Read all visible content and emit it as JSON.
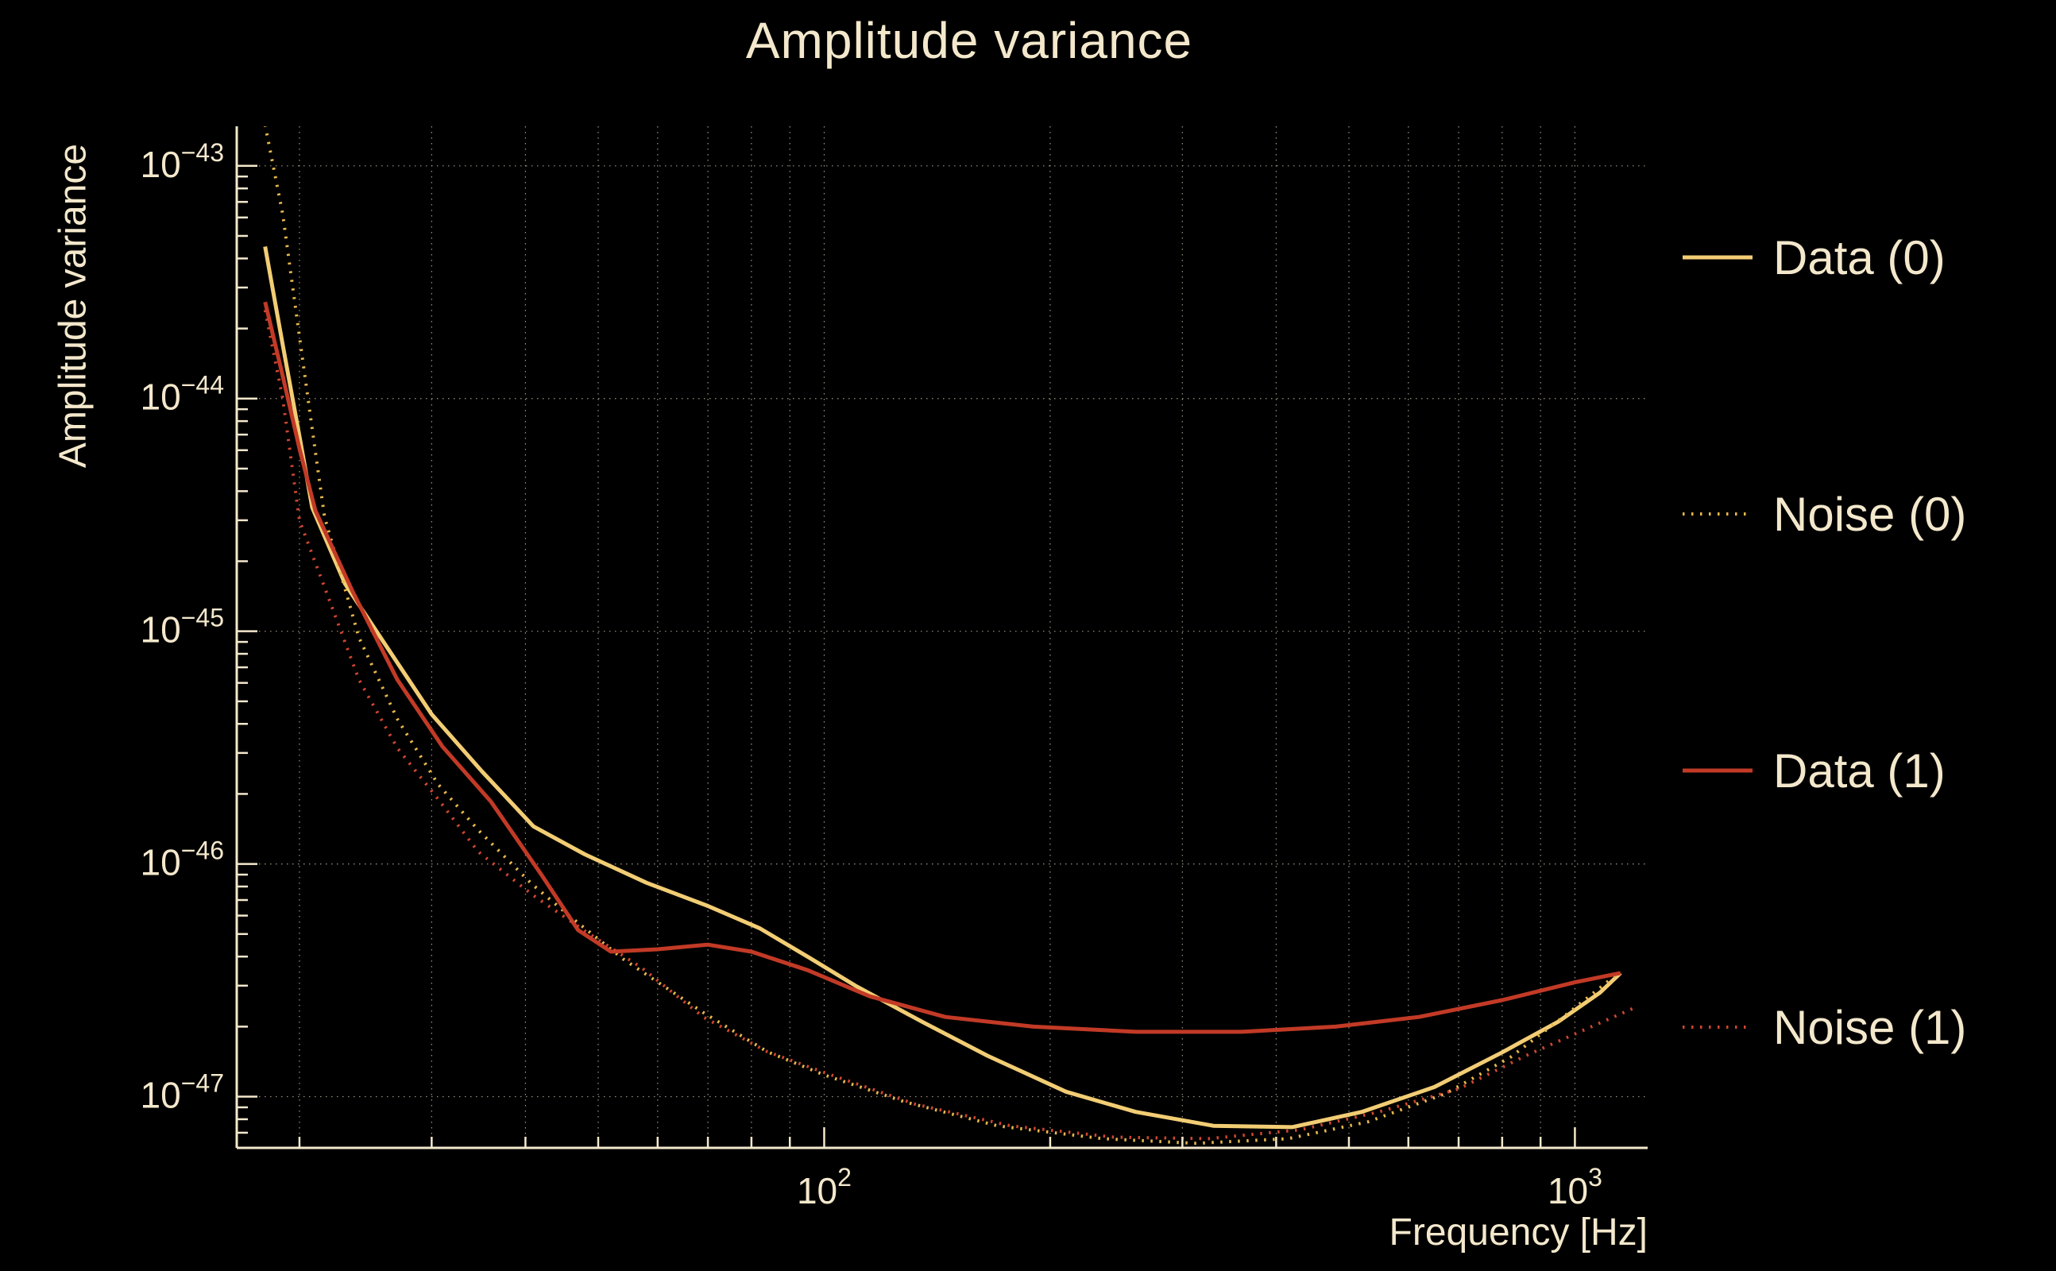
{
  "page": {
    "background": "#000000",
    "text_color": "#f4e8cc"
  },
  "chart_data": {
    "type": "line",
    "title": "Amplitude variance",
    "xlabel": "Frequency [Hz]",
    "ylabel": "Amplitude variance",
    "x_scale": "log",
    "y_scale": "log",
    "xlim": [
      16.5,
      1250
    ],
    "ylim_exp": [
      -47.22,
      -42.83
    ],
    "grid": true,
    "legend_position": "right-outside",
    "grid_color": "#f4e8cc",
    "axis_color": "#f4e8cc",
    "x_axis": {
      "major_ticks": [
        {
          "value": 100,
          "base": "10",
          "exp": "2"
        },
        {
          "value": 1000,
          "base": "10",
          "exp": "3"
        }
      ],
      "minor_ticks": [
        20,
        30,
        40,
        50,
        60,
        70,
        80,
        90,
        200,
        300,
        400,
        500,
        600,
        700,
        800,
        900
      ]
    },
    "y_axis": {
      "major_ticks": [
        {
          "exp_value": -43,
          "base": "10",
          "exp": "−43"
        },
        {
          "exp_value": -44,
          "base": "10",
          "exp": "−44"
        },
        {
          "exp_value": -45,
          "base": "10",
          "exp": "−45"
        },
        {
          "exp_value": -46,
          "base": "10",
          "exp": "−46"
        },
        {
          "exp_value": -47,
          "base": "10",
          "exp": "−47"
        }
      ]
    },
    "series": [
      {
        "name": "Data (0)",
        "color": "#f2cd74",
        "line_style": "solid",
        "points": [
          [
            18,
            4.5e-44
          ],
          [
            19,
            1.7e-44
          ],
          [
            20,
            6.9e-45
          ],
          [
            20.8,
            3.4e-45
          ],
          [
            23,
            1.6e-45
          ],
          [
            26,
            8.8e-46
          ],
          [
            30,
            4.4e-46
          ],
          [
            35,
            2.5e-46
          ],
          [
            41,
            1.45e-46
          ],
          [
            48,
            1.1e-46
          ],
          [
            58,
            8.3e-47
          ],
          [
            70,
            6.6e-47
          ],
          [
            82,
            5.3e-47
          ],
          [
            95,
            4e-47
          ],
          [
            110,
            3e-47
          ],
          [
            135,
            2.1e-47
          ],
          [
            165,
            1.5e-47
          ],
          [
            210,
            1.05e-47
          ],
          [
            260,
            8.6e-48
          ],
          [
            330,
            7.5e-48
          ],
          [
            420,
            7.4e-48
          ],
          [
            520,
            8.6e-48
          ],
          [
            650,
            1.1e-47
          ],
          [
            800,
            1.55e-47
          ],
          [
            950,
            2.1e-47
          ],
          [
            1080,
            2.8e-47
          ],
          [
            1150,
            3.4e-47
          ]
        ]
      },
      {
        "name": "Noise (0)",
        "color": "#e6b84c",
        "line_style": "dotted",
        "points": [
          [
            18,
            1.5e-43
          ],
          [
            19,
            6.2e-44
          ],
          [
            20,
            1.85e-44
          ],
          [
            21,
            5.9e-45
          ],
          [
            21.6,
            3.1e-45
          ],
          [
            24,
            9.4e-46
          ],
          [
            27,
            4.2e-46
          ],
          [
            30.6,
            2.2e-46
          ],
          [
            34.6,
            1.4e-46
          ],
          [
            40.8,
            8.2e-47
          ],
          [
            46,
            5.9e-47
          ],
          [
            54,
            3.9e-47
          ],
          [
            69,
            2.3e-47
          ],
          [
            84,
            1.56e-47
          ],
          [
            100,
            1.24e-47
          ],
          [
            128,
            9.5e-48
          ],
          [
            170,
            7.5e-48
          ],
          [
            235,
            6.6e-48
          ],
          [
            313,
            6.3e-48
          ],
          [
            415,
            6.6e-48
          ],
          [
            530,
            7.8e-48
          ],
          [
            672,
            1.03e-47
          ],
          [
            821,
            1.48e-47
          ],
          [
            965,
            2.2e-47
          ],
          [
            1130,
            3.3e-47
          ]
        ]
      },
      {
        "name": "Data (1)",
        "color": "#c23a26",
        "line_style": "solid",
        "points": [
          [
            18,
            2.6e-44
          ],
          [
            19,
            1.25e-44
          ],
          [
            20,
            6.1e-45
          ],
          [
            21,
            3.3e-45
          ],
          [
            23.5,
            1.5e-45
          ],
          [
            27,
            6.2e-46
          ],
          [
            31,
            3.2e-46
          ],
          [
            36,
            1.85e-46
          ],
          [
            42,
            9e-47
          ],
          [
            47,
            5.2e-47
          ],
          [
            52,
            4.2e-47
          ],
          [
            60,
            4.3e-47
          ],
          [
            70,
            4.5e-47
          ],
          [
            80,
            4.2e-47
          ],
          [
            95,
            3.5e-47
          ],
          [
            115,
            2.7e-47
          ],
          [
            145,
            2.2e-47
          ],
          [
            190,
            2e-47
          ],
          [
            260,
            1.9e-47
          ],
          [
            360,
            1.9e-47
          ],
          [
            480,
            2e-47
          ],
          [
            620,
            2.2e-47
          ],
          [
            800,
            2.6e-47
          ],
          [
            1000,
            3.1e-47
          ],
          [
            1150,
            3.4e-47
          ]
        ]
      },
      {
        "name": "Noise (1)",
        "color": "#cf4630",
        "line_style": "dotted",
        "points": [
          [
            18,
            2.4e-44
          ],
          [
            19,
            1e-44
          ],
          [
            20,
            3e-45
          ],
          [
            22.2,
            1.22e-45
          ],
          [
            24,
            6.2e-46
          ],
          [
            27,
            3.15e-46
          ],
          [
            30.6,
            1.9e-46
          ],
          [
            34.6,
            1.13e-46
          ],
          [
            40.8,
            7.4e-47
          ],
          [
            48,
            5.15e-47
          ],
          [
            57,
            3.6e-47
          ],
          [
            69,
            2.2e-47
          ],
          [
            84,
            1.56e-47
          ],
          [
            100,
            1.27e-47
          ],
          [
            132,
            9.3e-48
          ],
          [
            177,
            7.5e-48
          ],
          [
            243,
            6.7e-48
          ],
          [
            325,
            6.6e-48
          ],
          [
            430,
            7.2e-48
          ],
          [
            548,
            8.6e-48
          ],
          [
            700,
            1.08e-47
          ],
          [
            860,
            1.5e-47
          ],
          [
            1052,
            2e-47
          ],
          [
            1197,
            2.4e-47
          ]
        ]
      }
    ]
  }
}
